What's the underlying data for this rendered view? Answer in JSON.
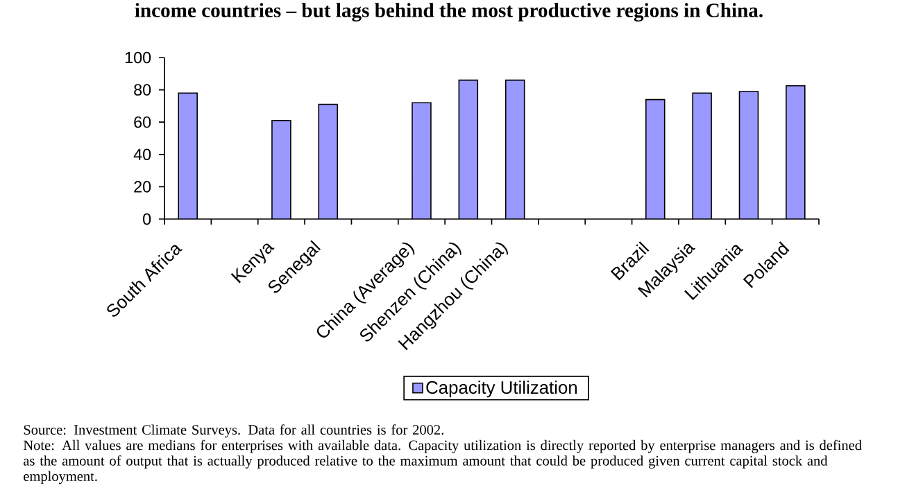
{
  "chart_data": {
    "type": "bar",
    "title": "income countries – but lags behind the most productive regions in China.",
    "categories": [
      "South Africa",
      null,
      "Kenya",
      "Senegal",
      null,
      "China (Average)",
      "Shenzen (China)",
      "Hangzhou (China)",
      null,
      null,
      "Brazil",
      "Malaysia",
      "Lithuania",
      "Poland"
    ],
    "series": [
      {
        "name": "Capacity Utilization",
        "color": "#9999ff",
        "values": [
          78,
          null,
          61,
          71,
          null,
          72,
          86,
          86,
          null,
          null,
          74,
          78,
          79,
          82.5
        ]
      }
    ],
    "ylim": [
      0,
      100
    ],
    "yticks": [
      0,
      20,
      40,
      60,
      80,
      100
    ],
    "legend": "bottom",
    "annotations": [
      "Source: Investment Climate Surveys. Data for all countries is for 2002.",
      "Note: All values are medians for enterprises with available data. Capacity utilization is directly reported by enterprise managers and is defined as the amount of output that is actually produced relative to the maximum amount that could be produced given current capital stock and employment."
    ]
  }
}
